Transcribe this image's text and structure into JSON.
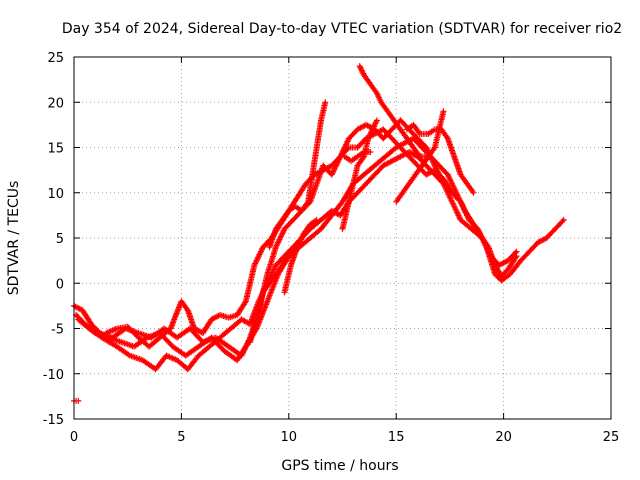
{
  "chart_data": {
    "type": "scatter",
    "title": "Day 354 of 2024, Sidereal Day-to-day VTEC variation (SDTVAR) for receiver rio2",
    "xlabel": "GPS time / hours",
    "ylabel": "SDTVAR / TECUs",
    "xlim": [
      0,
      25
    ],
    "ylim": [
      -15,
      25
    ],
    "xticks": [
      0,
      5,
      10,
      15,
      20,
      25
    ],
    "yticks": [
      -15,
      -10,
      -5,
      0,
      5,
      10,
      15,
      20,
      25
    ],
    "xtick_labels": [
      "0",
      "5",
      "10",
      "15",
      "20",
      "25"
    ],
    "ytick_labels": [
      "-15",
      "-10",
      "-5",
      "0",
      "5",
      "10",
      "15",
      "20",
      "25"
    ],
    "grid": true,
    "legend": "none",
    "marker_color": "#ff0000",
    "marker": "+",
    "series": [
      {
        "name": "track-1",
        "points": [
          [
            0,
            -2.5
          ],
          [
            0.4,
            -3
          ],
          [
            0.8,
            -4.5
          ],
          [
            1.2,
            -5.5
          ],
          [
            1.8,
            -6
          ],
          [
            2.4,
            -5
          ],
          [
            3,
            -5.5
          ],
          [
            3.6,
            -6
          ],
          [
            4.2,
            -5
          ],
          [
            4.8,
            -6
          ],
          [
            5.4,
            -5
          ],
          [
            6,
            -6.5
          ],
          [
            6.6,
            -6
          ],
          [
            7.2,
            -7
          ],
          [
            7.8,
            -8
          ],
          [
            8.2,
            -6
          ],
          [
            8.6,
            -3
          ],
          [
            9,
            1
          ],
          [
            9.4,
            4
          ],
          [
            9.8,
            6
          ],
          [
            10.2,
            7
          ],
          [
            10.6,
            8
          ],
          [
            11,
            9
          ],
          [
            11.3,
            11
          ],
          [
            11.6,
            13
          ],
          [
            12,
            12
          ],
          [
            12.4,
            14
          ],
          [
            12.8,
            16
          ],
          [
            13.2,
            17
          ],
          [
            13.6,
            17.5
          ],
          [
            14,
            17
          ],
          [
            14.4,
            16
          ],
          [
            14.8,
            17
          ],
          [
            15.2,
            18
          ],
          [
            15.6,
            17
          ],
          [
            16,
            16
          ],
          [
            16.4,
            15
          ],
          [
            16.8,
            13
          ],
          [
            17.2,
            11
          ],
          [
            17.6,
            9
          ],
          [
            18,
            7
          ],
          [
            18.5,
            6
          ],
          [
            19,
            5
          ],
          [
            19.4,
            3
          ],
          [
            19.8,
            2
          ],
          [
            20.2,
            2.5
          ],
          [
            20.6,
            3.5
          ]
        ]
      },
      {
        "name": "track-2",
        "points": [
          [
            0.1,
            -3.5
          ],
          [
            0.5,
            -4.5
          ],
          [
            1,
            -5.5
          ],
          [
            1.6,
            -6
          ],
          [
            2.2,
            -6.5
          ],
          [
            2.8,
            -7
          ],
          [
            3.4,
            -6
          ],
          [
            4,
            -5.5
          ],
          [
            4.6,
            -7
          ],
          [
            5.2,
            -8
          ],
          [
            5.8,
            -7
          ],
          [
            6.4,
            -6
          ],
          [
            7,
            -7.5
          ],
          [
            7.6,
            -8.5
          ],
          [
            8,
            -7
          ],
          [
            8.5,
            -5
          ],
          [
            9,
            -2
          ],
          [
            9.5,
            1
          ],
          [
            10,
            3
          ],
          [
            10.5,
            4
          ],
          [
            11,
            5
          ],
          [
            11.5,
            6
          ],
          [
            12,
            7.5
          ],
          [
            12.5,
            9
          ],
          [
            13,
            11
          ],
          [
            13.5,
            12
          ],
          [
            14,
            13
          ],
          [
            14.5,
            14
          ],
          [
            15,
            15
          ],
          [
            15.4,
            15.5
          ],
          [
            15.8,
            16
          ],
          [
            16.2,
            15
          ],
          [
            16.6,
            14
          ],
          [
            17,
            13
          ],
          [
            17.4,
            12
          ],
          [
            17.8,
            10
          ],
          [
            18.2,
            8
          ],
          [
            18.6,
            6.5
          ],
          [
            19,
            5
          ],
          [
            19.3,
            4
          ],
          [
            19.6,
            2
          ],
          [
            19.9,
            0.8
          ],
          [
            20.2,
            1.5
          ],
          [
            20.6,
            3
          ]
        ]
      },
      {
        "name": "track-3",
        "points": [
          [
            0.2,
            -4
          ],
          [
            0.7,
            -5
          ],
          [
            1.3,
            -6
          ],
          [
            2,
            -7
          ],
          [
            2.6,
            -8
          ],
          [
            3.2,
            -8.5
          ],
          [
            3.8,
            -9.5
          ],
          [
            4.3,
            -8
          ],
          [
            4.8,
            -8.5
          ],
          [
            5.3,
            -9.5
          ],
          [
            5.8,
            -8
          ],
          [
            6.3,
            -7
          ],
          [
            6.8,
            -6
          ],
          [
            7.3,
            -5
          ],
          [
            7.8,
            -4
          ],
          [
            8.2,
            -4.5
          ],
          [
            8.6,
            -2
          ],
          [
            9,
            0
          ],
          [
            9.4,
            2
          ],
          [
            9.8,
            3
          ],
          [
            10.2,
            4
          ],
          [
            10.6,
            5
          ],
          [
            11,
            6
          ],
          [
            11.5,
            7
          ],
          [
            12,
            8
          ],
          [
            12.4,
            7.5
          ],
          [
            12.8,
            9
          ],
          [
            13.2,
            10
          ],
          [
            13.6,
            11
          ],
          [
            14,
            12
          ],
          [
            14.4,
            13
          ],
          [
            14.8,
            13.5
          ],
          [
            15.2,
            14
          ],
          [
            15.6,
            14.5
          ],
          [
            16,
            14
          ],
          [
            16.4,
            13
          ],
          [
            16.8,
            12
          ],
          [
            17.2,
            11
          ],
          [
            17.6,
            10
          ],
          [
            18,
            9
          ],
          [
            18.4,
            7
          ],
          [
            18.8,
            6
          ],
          [
            19.2,
            4
          ],
          [
            19.6,
            1
          ],
          [
            19.9,
            0.3
          ],
          [
            20.3,
            1
          ],
          [
            20.8,
            2.5
          ],
          [
            21.2,
            3.5
          ],
          [
            21.6,
            4.5
          ],
          [
            22,
            5
          ],
          [
            22.4,
            6
          ],
          [
            22.8,
            7
          ]
        ]
      },
      {
        "name": "track-4",
        "points": [
          [
            1.5,
            -5.5
          ],
          [
            2,
            -5
          ],
          [
            2.5,
            -4.8
          ],
          [
            3,
            -6
          ],
          [
            3.5,
            -7
          ],
          [
            4,
            -6
          ],
          [
            4.5,
            -5
          ],
          [
            5,
            -2
          ],
          [
            5.3,
            -3
          ],
          [
            5.6,
            -5
          ],
          [
            6,
            -5.5
          ],
          [
            6.4,
            -4
          ],
          [
            6.8,
            -3.5
          ],
          [
            7.2,
            -3.8
          ],
          [
            7.6,
            -3.5
          ],
          [
            8,
            -2
          ],
          [
            8.4,
            2
          ],
          [
            8.8,
            4
          ],
          [
            9.2,
            5
          ],
          [
            9.6,
            6.5
          ],
          [
            10,
            8
          ],
          [
            10.4,
            9.5
          ],
          [
            10.8,
            11
          ],
          [
            11.2,
            12
          ],
          [
            11.6,
            12.5
          ],
          [
            12,
            13
          ],
          [
            12.4,
            14
          ],
          [
            12.8,
            15
          ],
          [
            13.2,
            15
          ],
          [
            13.6,
            16
          ],
          [
            14,
            16.5
          ],
          [
            14.4,
            17
          ],
          [
            14.8,
            16
          ],
          [
            15.2,
            15
          ],
          [
            15.6,
            14
          ],
          [
            16,
            13
          ],
          [
            16.4,
            12
          ],
          [
            16.8,
            12.5
          ],
          [
            17.2,
            11.5
          ],
          [
            17.6,
            10
          ],
          [
            18,
            9
          ],
          [
            18.4,
            7
          ]
        ]
      },
      {
        "name": "track-5",
        "points": [
          [
            9.1,
            4
          ],
          [
            9.4,
            6
          ],
          [
            9.7,
            7
          ],
          [
            10,
            8
          ],
          [
            10.3,
            8.5
          ],
          [
            10.6,
            8
          ],
          [
            10.9,
            9
          ],
          [
            11.1,
            12
          ],
          [
            11.3,
            15
          ],
          [
            11.5,
            18
          ],
          [
            11.7,
            20
          ]
        ]
      },
      {
        "name": "track-6",
        "points": [
          [
            9.8,
            -1
          ],
          [
            10.1,
            2
          ],
          [
            10.4,
            4
          ],
          [
            10.7,
            5.5
          ],
          [
            11,
            6.5
          ],
          [
            11.3,
            7
          ]
        ]
      },
      {
        "name": "track-7",
        "points": [
          [
            12.5,
            6
          ],
          [
            12.8,
            9
          ],
          [
            13,
            11
          ],
          [
            13.2,
            13
          ],
          [
            13.5,
            14
          ],
          [
            13.7,
            16
          ],
          [
            13.9,
            17
          ],
          [
            14.1,
            18
          ]
        ]
      },
      {
        "name": "track-8",
        "points": [
          [
            13.3,
            24
          ],
          [
            13.5,
            23
          ],
          [
            13.8,
            22
          ],
          [
            14.1,
            21
          ],
          [
            14.3,
            20
          ],
          [
            14.6,
            19
          ],
          [
            14.9,
            18
          ],
          [
            15.2,
            17
          ],
          [
            15.5,
            16
          ],
          [
            15.8,
            15
          ],
          [
            16.1,
            14
          ],
          [
            16.4,
            14
          ]
        ]
      },
      {
        "name": "track-9",
        "points": [
          [
            15,
            9
          ],
          [
            15.3,
            10
          ],
          [
            15.6,
            11
          ],
          [
            15.9,
            12
          ],
          [
            16.2,
            13
          ],
          [
            16.5,
            14
          ],
          [
            16.8,
            15
          ],
          [
            17,
            17
          ],
          [
            17.2,
            19
          ]
        ]
      },
      {
        "name": "track-10",
        "points": [
          [
            15.5,
            17
          ],
          [
            15.8,
            17.5
          ],
          [
            16.1,
            16.5
          ],
          [
            16.5,
            16.5
          ],
          [
            16.8,
            17
          ],
          [
            17.1,
            17
          ],
          [
            17.4,
            16
          ],
          [
            17.7,
            14
          ],
          [
            18,
            12
          ],
          [
            18.3,
            11
          ],
          [
            18.6,
            10
          ]
        ]
      },
      {
        "name": "track-11",
        "points": [
          [
            12.6,
            14
          ],
          [
            12.9,
            13.5
          ],
          [
            13.2,
            14
          ],
          [
            13.5,
            14.5
          ],
          [
            13.8,
            14.5
          ]
        ]
      },
      {
        "name": "track-12",
        "points": [
          [
            8.2,
            -6.5
          ],
          [
            8.5,
            -4
          ],
          [
            8.8,
            -1
          ],
          [
            9.1,
            0
          ],
          [
            9.4,
            1
          ],
          [
            9.7,
            2
          ],
          [
            10,
            3
          ]
        ]
      },
      {
        "name": "track-13",
        "points": [
          [
            0,
            -13
          ],
          [
            0.2,
            -13
          ]
        ]
      }
    ]
  }
}
